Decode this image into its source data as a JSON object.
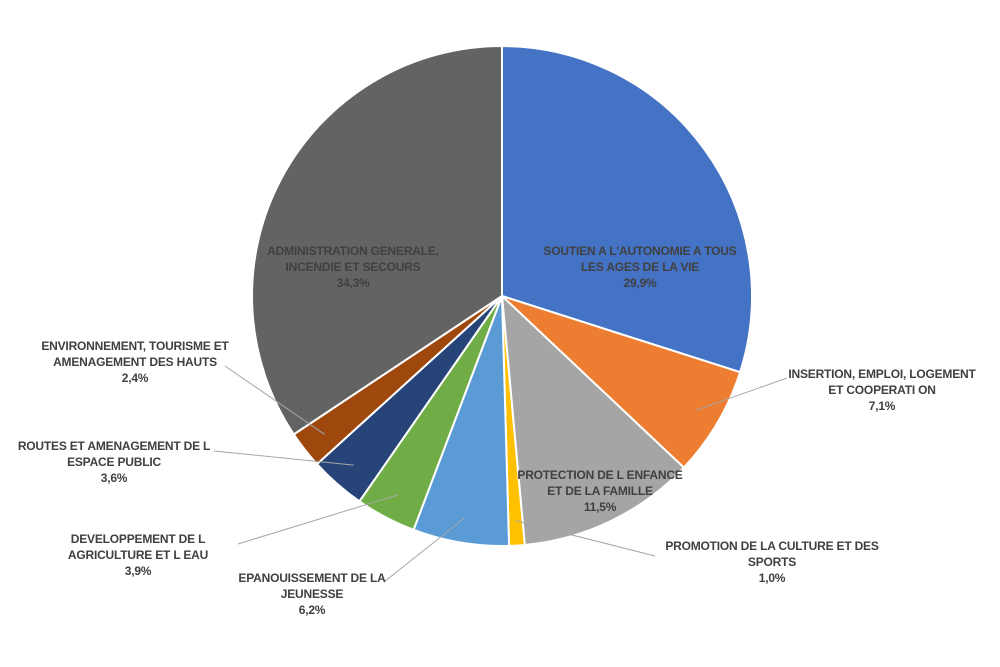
{
  "chart_data": {
    "type": "pie",
    "start_angle_deg": 0,
    "direction": "clockwise",
    "slices": [
      {
        "label_lines": [
          "SOUTIEN A L'AUTONOMIE A TOUS",
          "LES AGES DE  LA VIE"
        ],
        "value_label": "29,9%",
        "value": 29.9,
        "color": "#4472C4"
      },
      {
        "label_lines": [
          "INSERTION, EMPLOI, LOGEMENT",
          "ET COOPERATI ON"
        ],
        "value_label": "7,1%",
        "value": 7.1,
        "color": "#ED7D31"
      },
      {
        "label_lines": [
          "PROTECTION DE L ENFANCE",
          "ET DE LA FAMILLE"
        ],
        "value_label": "11,5%",
        "value": 11.5,
        "color": "#A5A5A5"
      },
      {
        "label_lines": [
          "PROMOTION DE LA CULTURE ET DES",
          "SPORTS"
        ],
        "value_label": "1,0%",
        "value": 1.0,
        "color": "#FFC000"
      },
      {
        "label_lines": [
          "EPANOUISSEMENT DE LA",
          "JEUNESSE"
        ],
        "value_label": "6,2%",
        "value": 6.2,
        "color": "#5B9BD5"
      },
      {
        "label_lines": [
          "DEVELOPPEMENT DE L",
          "AGRICULTURE ET L EAU"
        ],
        "value_label": "3,9%",
        "value": 3.9,
        "color": "#70AD47"
      },
      {
        "label_lines": [
          "ROUTES ET AMENAGEMENT DE L",
          "ESPACE PUBLIC"
        ],
        "value_label": "3,6%",
        "value": 3.6,
        "color": "#264478"
      },
      {
        "label_lines": [
          "ENVIRONNEMENT, TOURISME ET",
          "AMENAGEMENT DES HAUTS"
        ],
        "value_label": "2,4%",
        "value": 2.4,
        "color": "#9E480E"
      },
      {
        "label_lines": [
          "ADMINISTRATION GENERALE,",
          "INCENDIE ET SECOURS"
        ],
        "value_label": "34,3%",
        "value": 34.3,
        "color": "#636363"
      }
    ]
  }
}
